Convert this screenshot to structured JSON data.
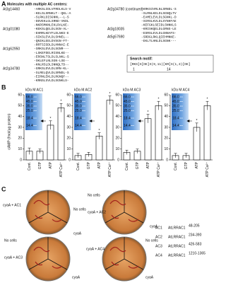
{
  "panel_a": {
    "letter": "A",
    "title": "Molecules with multiple AC centers:",
    "left": [
      {
        "gene": "At3g14460",
        "sequences": [
          "-ARKSLIDLVFRDLKLS-V",
          "-KELSLSRNKLT--QKL-A",
          "-SLRKLDISGNNL--L-S",
          "-DDVEKLGLSRND-VKDL",
          "-NKRSMKNLEKLRALKE-"
        ]
      },
      {
        "gene": "At1g01080",
        "sequences": [
          "-KEKSLQELDLSGN-AL-",
          "-EHRRLKEYFLDLNKS-E",
          "-SIKSLEVLDLSHNEL--",
          "-QNIKLEELDVSGN-FT-",
          "-RRTSISDLDLHNNAI-E"
        ]
      },
      {
        "gene": "At1g62950",
        "sequences": [
          "-SRKSLDVLDLSGNR---",
          "-LSKEFDELRISNLKE--",
          "-ERSNLTSLDLSLNKL-S",
          "-SKLEFLNLSGN-LSE--",
          "-KNLRSLDLSNNQLTD--"
        ]
      },
      {
        "gene": "At2g34780",
        "sequences": [
          "-GRKSLDVLDLSRN-KL-",
          "-SLRELQVLDLSRNDL-S",
          "-EIRNLEKLDLRGNQF--",
          "-KRNSLSVLDLSGNKLS-"
        ]
      }
    ],
    "right": [
      {
        "gene": "At2g34780 (continued)",
        "sequences": [
          "-KRKSIVRLNLSRNDL-S",
          "-SLRNLKELDLSGNQLTV",
          "-EAMELEVLDLSGNKL-D",
          "-SIRSLKVLDLSYNHFAE",
          "-KEFGKLSEIDLSNNKLS"
        ]
      },
      {
        "gene": "At3g18035",
        "sequences": [
          "-KRISKQELDLGRNS-LE",
          "-ESRSLEVLDLGNNAFS-"
        ]
      },
      {
        "gene": "At5g57690",
        "sequences": [
          "-SRDGLRKLQIEHMNKE-",
          "-EKLTLHNLDLSGNK---"
        ]
      }
    ],
    "search_motif": {
      "label": "Search motif:",
      "motif": "[RKS]X[DE]X(9,11)[KR]X(1,3)[DE]",
      "positions": [
        1,
        14
      ]
    }
  },
  "panel_b_letter": "B",
  "y_axis_label": "cAMP (fmol/µg protein)",
  "chart_data": [
    {
      "type": "bar",
      "inset": {
        "title": "kDa M AC1",
        "markers": [
          "66.0",
          "45.0",
          "35.0",
          "25.0",
          "18.4",
          "14.4"
        ]
      },
      "categories": [
        "Cont.",
        "GTP",
        "ATP",
        "ATP Ca²⁺"
      ],
      "values": [
        8,
        8,
        32,
        48
      ],
      "errors": [
        3,
        2,
        4,
        4
      ],
      "significance": [
        null,
        null,
        "*",
        "*"
      ],
      "ylim": [
        0,
        60
      ],
      "yticks": [
        0,
        10,
        20,
        30,
        40,
        50,
        60
      ]
    },
    {
      "type": "bar",
      "inset": {
        "title": "kDa M AC2",
        "markers": [
          "66.0",
          "45.0",
          "35.0",
          "25.0",
          "18.4",
          "14.4"
        ]
      },
      "categories": [
        "Cont.",
        "GTP",
        "ATP",
        "ATP Ca²⁺"
      ],
      "values": [
        4,
        5,
        22,
        55
      ],
      "errors": [
        2,
        2,
        3,
        4
      ],
      "significance": [
        null,
        null,
        "*",
        "*"
      ],
      "ylim": [
        0,
        60
      ],
      "yticks": [
        0,
        10,
        20,
        30,
        40,
        50,
        60
      ]
    },
    {
      "type": "bar",
      "inset": {
        "title": "kDa M AC3",
        "markers": [
          "66.0",
          "45.0",
          "35.0",
          "25.0",
          "18.4",
          "14.4"
        ]
      },
      "categories": [
        "Cont.",
        "GTP",
        "ATP",
        "ATP Ca²⁺"
      ],
      "values": [
        7,
        8,
        38,
        50
      ],
      "errors": [
        2,
        2,
        4,
        4
      ],
      "significance": [
        null,
        null,
        "*",
        "*"
      ],
      "ylim": [
        0,
        60
      ],
      "yticks": [
        0,
        10,
        20,
        30,
        40,
        50,
        60
      ]
    },
    {
      "type": "bar",
      "inset": {
        "title": "kDa M AC4",
        "markers": [
          "66.0",
          "45.0",
          "35.0",
          "25.0",
          "18.4",
          "14.4"
        ]
      },
      "categories": [
        "Cont.",
        "GTP",
        "ATP",
        "ATP Ca²⁺"
      ],
      "values": [
        4,
        4,
        30,
        50
      ],
      "errors": [
        2,
        2,
        4,
        4
      ],
      "significance": [
        null,
        null,
        "*",
        "*"
      ],
      "ylim": [
        0,
        60
      ],
      "yticks": [
        0,
        10,
        20,
        30,
        40,
        50,
        60
      ]
    }
  ],
  "panel_c": {
    "letter": "C",
    "plates": [
      {
        "labels": [
          "cyaA + AC1",
          "No cells",
          "cyaA"
        ]
      },
      {
        "labels": [
          "No cells",
          "cyaA + AC2",
          "cyaA"
        ]
      },
      {
        "labels": [
          "No cells",
          "cyaA + AC3",
          "cyaA"
        ]
      },
      {
        "labels": [
          "cyaA + AC4",
          "No cells",
          "cyaA"
        ]
      }
    ],
    "legend": [
      {
        "key": "AC1",
        "construct": "AtLRRAC1",
        "range": "48-205"
      },
      {
        "key": "AC2",
        "construct": "AtLRRAC1",
        "range": "234-390"
      },
      {
        "key": "AC3",
        "construct": "AtLRRAC1",
        "range": "426-583"
      },
      {
        "key": "AC4",
        "construct": "AtLRRAC1",
        "range": "1210-1365"
      }
    ]
  }
}
